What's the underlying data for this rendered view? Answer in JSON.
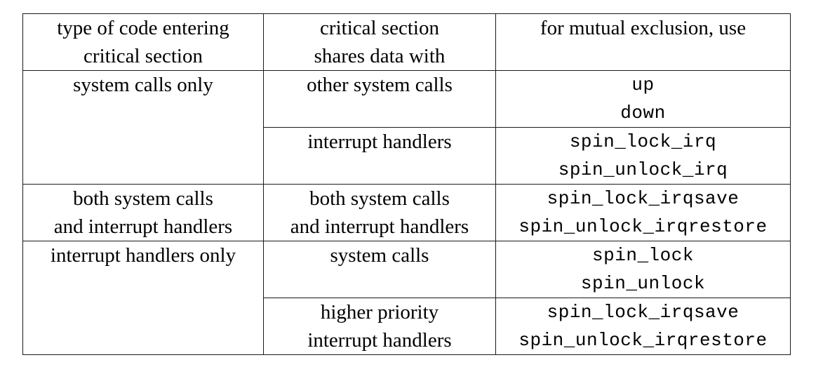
{
  "table": {
    "headers": [
      [
        "type of code entering",
        "critical section"
      ],
      [
        "critical section",
        "shares data with"
      ],
      [
        "for mutual exclusion, use"
      ]
    ],
    "groups": [
      {
        "entering": [
          "system calls only"
        ],
        "rows": [
          {
            "shares": [
              "other system calls"
            ],
            "use": [
              "up",
              "down"
            ]
          },
          {
            "shares": [
              "interrupt handlers"
            ],
            "use": [
              "spin_lock_irq",
              "spin_unlock_irq"
            ]
          }
        ]
      },
      {
        "entering": [
          "both system calls",
          "and interrupt handlers"
        ],
        "rows": [
          {
            "shares": [
              "both system calls",
              "and interrupt handlers"
            ],
            "use": [
              "spin_lock_irqsave",
              "spin_unlock_irqrestore"
            ]
          }
        ]
      },
      {
        "entering": [
          "interrupt handlers only"
        ],
        "rows": [
          {
            "shares": [
              "system calls"
            ],
            "use": [
              "spin_lock",
              "spin_unlock"
            ]
          },
          {
            "shares": [
              "higher priority",
              "interrupt handlers"
            ],
            "use": [
              "spin_lock_irqsave",
              "spin_unlock_irqrestore"
            ]
          }
        ]
      }
    ]
  }
}
